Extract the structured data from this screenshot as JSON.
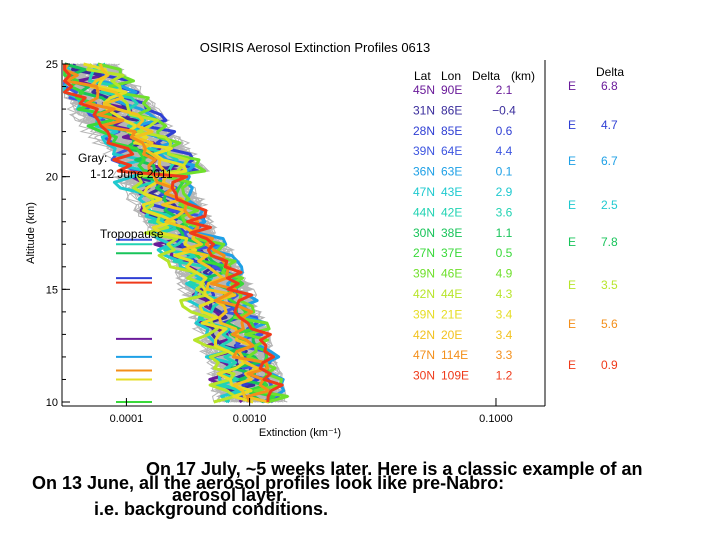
{
  "chart_data": {
    "type": "line",
    "title": "OSIRIS Aerosol Extinction Profiles 0613",
    "xlabel": "Extinction (km⁻¹)",
    "ylabel": "Altitude (km)",
    "x_scale": "log",
    "xlim": [
      3e-05,
      0.25
    ],
    "ylim": [
      10,
      25
    ],
    "x_ticks": [
      "0.0001",
      "0.0010",
      "0.1000"
    ],
    "x_tick_values": [
      0.0001,
      0.001,
      0.1
    ],
    "y_ticks": [
      "10",
      "15",
      "20",
      "25"
    ],
    "y_tick_values": [
      10,
      15,
      20,
      25
    ],
    "background_label": "Gray:\n  1-12 June 2011",
    "tropopause_label": "Tropopause",
    "legend_headers": [
      "Lat",
      "Lon",
      "Delta",
      "(km)"
    ],
    "series": [
      {
        "lat": "45N",
        "lon": "90E",
        "delta": "2.1",
        "color": "#6a1b9a"
      },
      {
        "lat": "31N",
        "lon": "86E",
        "delta": "−0.4",
        "color": "#3a2d9c"
      },
      {
        "lat": "28N",
        "lon": "85E",
        "delta": "0.6",
        "color": "#2f3fd4"
      },
      {
        "lat": "39N",
        "lon": "64E",
        "delta": "4.4",
        "color": "#3d55e0"
      },
      {
        "lat": "36N",
        "lon": "63E",
        "delta": "0.1",
        "color": "#1ea0e6"
      },
      {
        "lat": "47N",
        "lon": "43E",
        "delta": "2.9",
        "color": "#1fc9cf"
      },
      {
        "lat": "44N",
        "lon": "42E",
        "delta": "3.6",
        "color": "#22d3b3"
      },
      {
        "lat": "30N",
        "lon": "38E",
        "delta": "1.1",
        "color": "#18c45a"
      },
      {
        "lat": "27N",
        "lon": "37E",
        "delta": "0.5",
        "color": "#39d93a"
      },
      {
        "lat": "39N",
        "lon": "46E",
        "delta": "4.9",
        "color": "#6fe02c"
      },
      {
        "lat": "42N",
        "lon": "44E",
        "delta": "4.3",
        "color": "#b7e52a"
      },
      {
        "lat": "39N",
        "lon": "21E",
        "delta": "3.4",
        "color": "#e6dd25"
      },
      {
        "lat": "42N",
        "lon": "20E",
        "delta": "3.4",
        "color": "#f2c21f"
      },
      {
        "lat": "47N",
        "lon": "114E",
        "delta": "3.3",
        "color": "#f38f1a"
      },
      {
        "lat": "30N",
        "lon": "109E",
        "delta": "1.2",
        "color": "#ef3a1a"
      }
    ],
    "overlay_legend": [
      {
        "lon": "E",
        "delta": "6.8",
        "color": "#6a1b9a"
      },
      {
        "lon": "E",
        "delta": "4.7",
        "color": "#2f3fd4"
      },
      {
        "lon": "E",
        "delta": "6.7",
        "color": "#1ea0e6"
      },
      {
        "lon": "E",
        "delta": "2.5",
        "color": "#1fc9cf"
      },
      {
        "lon": "E",
        "delta": "7.8",
        "color": "#18c45a"
      },
      {
        "lon": "E",
        "delta": "3.5",
        "color": "#b7e52a"
      },
      {
        "lon": "E",
        "delta": "5.6",
        "color": "#f38f1a"
      },
      {
        "lon": "E",
        "delta": "0.9",
        "color": "#ef3a1a"
      }
    ],
    "tropopause_altitudes_km": [
      17.2,
      17.0,
      16.6,
      15.5,
      15.3,
      12.8,
      12.0,
      11.4,
      11.0,
      10.0
    ],
    "tropopause_colors": [
      "#3d55e0",
      "#22d3b3",
      "#18c45a",
      "#2f3fd4",
      "#ef3a1a",
      "#6a1b9a",
      "#1ea0e6",
      "#f38f1a",
      "#e6dd25",
      "#39d93a"
    ]
  },
  "captions": {
    "line1": "On 17 July, ~5 weeks later. Here is a classic example of an",
    "line2": "aerosol layer.",
    "line3": "On 13 June, all the aerosol profiles look like pre-Nabro:",
    "line4": "i.e. background conditions."
  }
}
